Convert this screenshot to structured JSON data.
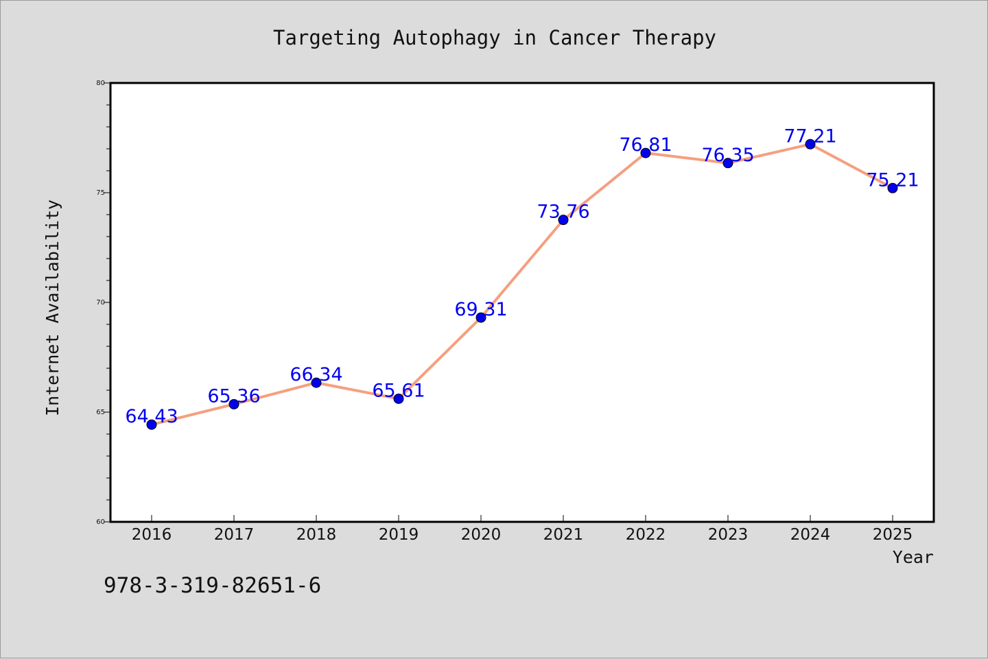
{
  "chart_data": {
    "type": "line",
    "title": "Targeting Autophagy in Cancer Therapy",
    "xlabel": "Year",
    "ylabel": "Internet Availability",
    "categories": [
      "2016",
      "2017",
      "2018",
      "2019",
      "2020",
      "2021",
      "2022",
      "2023",
      "2024",
      "2025"
    ],
    "series": [
      {
        "values": [
          64.43,
          65.36,
          66.34,
          65.61,
          69.31,
          73.76,
          76.81,
          76.35,
          77.21,
          75.21
        ],
        "labels": [
          "64.43",
          "65.36",
          "66.34",
          "65.61",
          "69.31",
          "73.76",
          "76.81",
          "76.35",
          "77.21",
          "75.21"
        ],
        "line_color": "#f4a07f",
        "marker_color": "#0000ee"
      }
    ],
    "ylim": [
      60,
      80
    ],
    "yticks": [
      "60",
      "65",
      "70",
      "75",
      "80"
    ],
    "grid": false,
    "legend": "none"
  },
  "footer_text": "978-3-319-82651-6"
}
